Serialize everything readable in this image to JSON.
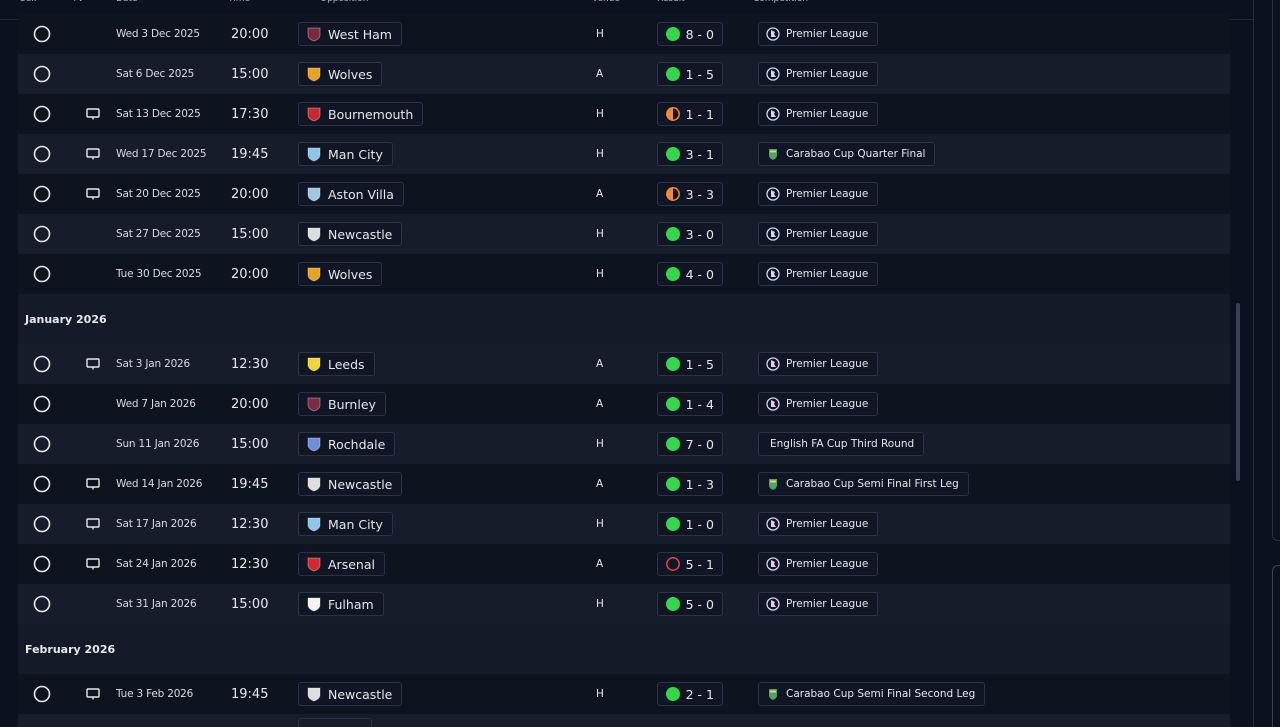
{
  "header": {
    "columns": [
      "Sel.",
      "TV",
      "Date",
      "Time",
      "Opposition",
      "Venue",
      "Result",
      "Competition"
    ]
  },
  "groups": [
    {
      "rows": [
        {
          "tv": false,
          "date": "Wed 3 Dec 2025",
          "time": "20:00",
          "opposition": "West Ham",
          "badge": "#7a2a3c",
          "venue": "H",
          "result": "8 - 0",
          "outcome": "win",
          "competition": "Premier League",
          "comp_icon": "league"
        },
        {
          "tv": false,
          "date": "Sat 6 Dec 2025",
          "time": "15:00",
          "opposition": "Wolves",
          "badge": "#e8a21c",
          "venue": "A",
          "result": "1 - 5",
          "outcome": "win",
          "competition": "Premier League",
          "comp_icon": "league"
        },
        {
          "tv": true,
          "date": "Sat 13 Dec 2025",
          "time": "17:30",
          "opposition": "Bournemouth",
          "badge": "#c8282e",
          "venue": "H",
          "result": "1 - 1",
          "outcome": "draw",
          "competition": "Premier League",
          "comp_icon": "league"
        },
        {
          "tv": true,
          "date": "Wed 17 Dec 2025",
          "time": "19:45",
          "opposition": "Man City",
          "badge": "#8ec5ea",
          "venue": "H",
          "result": "3 - 1",
          "outcome": "win",
          "competition": "Carabao Cup Quarter Final",
          "comp_icon": "cup"
        },
        {
          "tv": true,
          "date": "Sat 20 Dec 2025",
          "time": "20:00",
          "opposition": "Aston Villa",
          "badge": "#9ec7e6",
          "venue": "A",
          "result": "3 - 3",
          "outcome": "draw",
          "competition": "Premier League",
          "comp_icon": "league"
        },
        {
          "tv": false,
          "date": "Sat 27 Dec 2025",
          "time": "15:00",
          "opposition": "Newcastle",
          "badge": "#dddddd",
          "venue": "H",
          "result": "3 - 0",
          "outcome": "win",
          "competition": "Premier League",
          "comp_icon": "league"
        },
        {
          "tv": false,
          "date": "Tue 30 Dec 2025",
          "time": "20:00",
          "opposition": "Wolves",
          "badge": "#e8a21c",
          "venue": "H",
          "result": "4 - 0",
          "outcome": "win",
          "competition": "Premier League",
          "comp_icon": "league"
        }
      ]
    },
    {
      "title": "January 2026",
      "rows": [
        {
          "tv": true,
          "date": "Sat 3 Jan 2026",
          "time": "12:30",
          "opposition": "Leeds",
          "badge": "#f3d331",
          "venue": "A",
          "result": "1 - 5",
          "outcome": "win",
          "competition": "Premier League",
          "comp_icon": "league"
        },
        {
          "tv": false,
          "date": "Wed 7 Jan 2026",
          "time": "20:00",
          "opposition": "Burnley",
          "badge": "#7b2b46",
          "venue": "A",
          "result": "1 - 4",
          "outcome": "win",
          "competition": "Premier League",
          "comp_icon": "league"
        },
        {
          "tv": false,
          "date": "Sun 11 Jan 2026",
          "time": "15:00",
          "opposition": "Rochdale",
          "badge": "#6d8fd8",
          "venue": "H",
          "result": "7 - 0",
          "outcome": "win",
          "competition": "English FA Cup Third Round",
          "comp_icon": null
        },
        {
          "tv": true,
          "date": "Wed 14 Jan 2026",
          "time": "19:45",
          "opposition": "Newcastle",
          "badge": "#dddddd",
          "venue": "A",
          "result": "1 - 3",
          "outcome": "win",
          "competition": "Carabao Cup Semi Final First Leg",
          "comp_icon": "cup"
        },
        {
          "tv": true,
          "date": "Sat 17 Jan 2026",
          "time": "12:30",
          "opposition": "Man City",
          "badge": "#8ec5ea",
          "venue": "H",
          "result": "1 - 0",
          "outcome": "win",
          "competition": "Premier League",
          "comp_icon": "league"
        },
        {
          "tv": true,
          "date": "Sat 24 Jan 2026",
          "time": "12:30",
          "opposition": "Arsenal",
          "badge": "#d8262b",
          "venue": "A",
          "result": "5 - 1",
          "outcome": "loss",
          "competition": "Premier League",
          "comp_icon": "league"
        },
        {
          "tv": false,
          "date": "Sat 31 Jan 2026",
          "time": "15:00",
          "opposition": "Fulham",
          "badge": "#f2f2f2",
          "venue": "H",
          "result": "5 - 0",
          "outcome": "win",
          "competition": "Premier League",
          "comp_icon": "league"
        }
      ]
    },
    {
      "title": "February 2026",
      "rows": [
        {
          "tv": true,
          "date": "Tue 3 Feb 2026",
          "time": "19:45",
          "opposition": "Newcastle",
          "badge": "#dddddd",
          "venue": "H",
          "result": "2 - 1",
          "outcome": "win",
          "competition": "Carabao Cup Semi Final Second Leg",
          "comp_icon": "cup"
        }
      ]
    }
  ]
}
